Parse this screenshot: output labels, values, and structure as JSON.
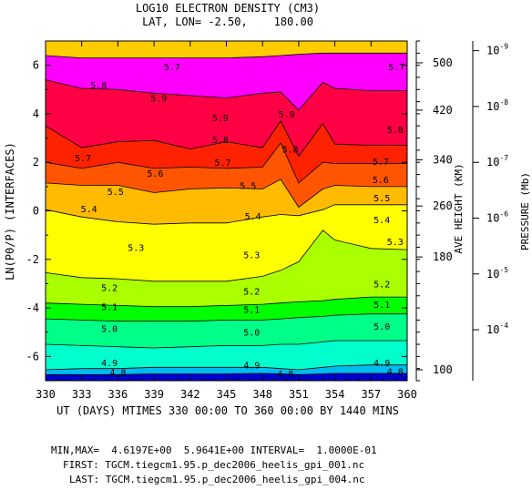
{
  "chart_data": {
    "type": "heatmap",
    "title": "LOG10 ELECTRON DENSITY (CM3)",
    "subtitle": "LAT, LON= -2.50,    180.00",
    "xlabel": "UT (DAYS) MTIMES 330 00:00 TO 360 00:00 BY 1440 MINS",
    "ylabel": "LN(P0/P) (INTERFACES)",
    "right_label_1": "AVE HEIGHT (KM)",
    "right_label_2": "PRESSURE (Mb)",
    "xlim": [
      330,
      360
    ],
    "ylim": [
      -7,
      7
    ],
    "x_ticks": [
      330,
      333,
      336,
      339,
      342,
      345,
      348,
      351,
      354,
      357,
      360
    ],
    "x_tick_labels": [
      "330",
      "333",
      "336",
      "339",
      "342",
      "345",
      "348",
      "351",
      "354",
      "357",
      "360"
    ],
    "y_ticks": [
      -6,
      -4,
      -2,
      0,
      2,
      4,
      6
    ],
    "y_tick_labels": [
      "-6",
      "-4",
      "-2",
      "0",
      "2",
      "4",
      "6"
    ],
    "height_axis": {
      "labels": [
        "100",
        "180",
        "260",
        "340",
        "420",
        "500"
      ],
      "positions_lnp": [
        -6.55,
        -1.9,
        0.2,
        2.1,
        4.15,
        6.1
      ]
    },
    "pressure_axis": {
      "mantissa": "10",
      "exponents": [
        "-4",
        "-5",
        "-6",
        "-7",
        "-8",
        "-9"
      ],
      "positions_lnp": [
        -4.9,
        -2.6,
        -0.3,
        2.0,
        4.3,
        6.6
      ]
    },
    "x": [
      330,
      333,
      336,
      339,
      342,
      345,
      348,
      349.5,
      351,
      353,
      354,
      357,
      360
    ],
    "levels": [
      4.8,
      4.9,
      5.0,
      5.1,
      5.2,
      5.3,
      5.4,
      5.5,
      5.6,
      5.7,
      5.8,
      5.9
    ],
    "level_colors": [
      "#0000ff",
      "#00bbee",
      "#00ffcc",
      "#00ff88",
      "#00ff00",
      "#aaff00",
      "#ffff00",
      "#ffbb00",
      "#ff5500",
      "#ff2200",
      "#ff0044",
      "#ff00ff"
    ],
    "below_color": "#0000cc",
    "above_color": "#ffcc00",
    "contours": [
      {
        "level": 4.8,
        "y": [
          -6.75,
          -6.75,
          -6.75,
          -6.72,
          -6.72,
          -6.72,
          -6.7,
          -6.72,
          -6.75,
          -6.72,
          -6.7,
          -6.7,
          -6.7
        ]
      },
      {
        "level": 4.9,
        "y": [
          -6.55,
          -6.5,
          -6.5,
          -6.45,
          -6.45,
          -6.45,
          -6.45,
          -6.5,
          -6.55,
          -6.45,
          -6.4,
          -6.35,
          -6.35
        ]
      },
      {
        "level": 5.0,
        "y": [
          -5.5,
          -5.55,
          -5.6,
          -5.65,
          -5.6,
          -5.55,
          -5.55,
          -5.5,
          -5.5,
          -5.4,
          -5.35,
          -5.35,
          -5.35
        ]
      },
      {
        "level": 5.1,
        "y": [
          -4.45,
          -4.5,
          -4.55,
          -4.55,
          -4.55,
          -4.5,
          -4.5,
          -4.45,
          -4.4,
          -4.35,
          -4.3,
          -4.25,
          -4.25
        ]
      },
      {
        "level": 5.2,
        "y": [
          -3.8,
          -3.85,
          -3.9,
          -3.95,
          -3.95,
          -3.9,
          -3.85,
          -3.8,
          -3.75,
          -3.7,
          -3.65,
          -3.55,
          -3.55
        ]
      },
      {
        "level": 5.3,
        "y": [
          -2.55,
          -2.75,
          -2.8,
          -2.9,
          -2.9,
          -2.9,
          -2.7,
          -2.45,
          -2.1,
          -0.8,
          -1.2,
          -1.55,
          -1.6
        ]
      },
      {
        "level": 5.4,
        "y": [
          0.05,
          -0.25,
          -0.45,
          -0.55,
          -0.5,
          -0.5,
          -0.25,
          -0.15,
          -0.2,
          0.05,
          0.25,
          0.25,
          0.25
        ]
      },
      {
        "level": 5.5,
        "y": [
          1.15,
          1.05,
          1.05,
          0.75,
          0.9,
          0.95,
          0.9,
          1.3,
          0.15,
          0.9,
          1.05,
          1.0,
          1.0
        ]
      },
      {
        "level": 5.6,
        "y": [
          2.0,
          1.75,
          2.0,
          1.75,
          1.8,
          1.75,
          1.8,
          2.8,
          1.15,
          2.0,
          1.95,
          1.95,
          1.95
        ]
      },
      {
        "level": 5.7,
        "y": [
          3.5,
          2.6,
          2.85,
          2.9,
          2.55,
          2.85,
          2.6,
          3.7,
          2.25,
          3.6,
          2.75,
          2.7,
          2.7
        ]
      },
      {
        "level": 5.8,
        "y": [
          5.4,
          5.05,
          5.0,
          4.85,
          4.75,
          4.65,
          4.85,
          4.9,
          4.15,
          5.3,
          5.05,
          4.95,
          4.95
        ]
      },
      {
        "level": 5.9,
        "y": [
          6.4,
          6.3,
          6.3,
          6.3,
          6.3,
          6.3,
          6.35,
          6.4,
          6.45,
          6.5,
          6.5,
          6.5,
          6.5
        ]
      }
    ],
    "contour_labels": [
      {
        "text": "5.7",
        "x": 340.5,
        "y": 5.95
      },
      {
        "text": "5.8",
        "x": 334.4,
        "y": 5.2
      },
      {
        "text": "5.9",
        "x": 339.4,
        "y": 4.65
      },
      {
        "text": "5.9",
        "x": 344.5,
        "y": 3.85
      },
      {
        "text": "5.8",
        "x": 344.5,
        "y": 2.95
      },
      {
        "text": "5.9",
        "x": 350.0,
        "y": 4.0
      },
      {
        "text": "5.8",
        "x": 350.3,
        "y": 2.55
      },
      {
        "text": "5.7",
        "x": 359.1,
        "y": 5.95
      },
      {
        "text": "5.8",
        "x": 359.0,
        "y": 3.35
      },
      {
        "text": "5.7",
        "x": 333.1,
        "y": 2.2
      },
      {
        "text": "5.7",
        "x": 344.7,
        "y": 2.0
      },
      {
        "text": "5.7",
        "x": 357.8,
        "y": 2.05
      },
      {
        "text": "5.6",
        "x": 339.1,
        "y": 1.55
      },
      {
        "text": "5.6",
        "x": 357.8,
        "y": 1.3
      },
      {
        "text": "5.5",
        "x": 346.8,
        "y": 1.05
      },
      {
        "text": "5.5",
        "x": 335.8,
        "y": 0.8
      },
      {
        "text": "5.5",
        "x": 357.9,
        "y": 0.55
      },
      {
        "text": "5.4",
        "x": 333.6,
        "y": 0.1
      },
      {
        "text": "5.4",
        "x": 347.2,
        "y": -0.2
      },
      {
        "text": "5.4",
        "x": 357.9,
        "y": -0.35
      },
      {
        "text": "5.3",
        "x": 337.5,
        "y": -1.5
      },
      {
        "text": "5.3",
        "x": 347.1,
        "y": -1.8
      },
      {
        "text": "5.3",
        "x": 359.0,
        "y": -1.25
      },
      {
        "text": "5.2",
        "x": 335.3,
        "y": -3.15
      },
      {
        "text": "5.2",
        "x": 347.1,
        "y": -3.3
      },
      {
        "text": "5.2",
        "x": 357.9,
        "y": -3.0
      },
      {
        "text": "5.1",
        "x": 335.3,
        "y": -3.95
      },
      {
        "text": "5.1",
        "x": 347.1,
        "y": -4.05
      },
      {
        "text": "5.1",
        "x": 357.9,
        "y": -3.85
      },
      {
        "text": "5.0",
        "x": 335.3,
        "y": -4.85
      },
      {
        "text": "5.0",
        "x": 347.1,
        "y": -5.0
      },
      {
        "text": "5.0",
        "x": 357.9,
        "y": -4.75
      },
      {
        "text": "4.9",
        "x": 335.3,
        "y": -6.25
      },
      {
        "text": "4.9",
        "x": 347.1,
        "y": -6.35
      },
      {
        "text": "4.9",
        "x": 357.9,
        "y": -6.25
      },
      {
        "text": "4.8",
        "x": 336.0,
        "y": -6.65
      },
      {
        "text": "4.8",
        "x": 349.9,
        "y": -6.7
      },
      {
        "text": "4.8",
        "x": 359.0,
        "y": -6.6
      }
    ]
  },
  "footer": {
    "stats": "MIN,MAX=  4.6197E+00  5.9641E+00 INTERVAL=  1.0000E-01",
    "first": "FIRST: TGCM.tiegcm1.95.p_dec2006_heelis_gpi_001.nc",
    "last": "LAST: TGCM.tiegcm1.95.p_dec2006_heelis_gpi_004.nc"
  }
}
